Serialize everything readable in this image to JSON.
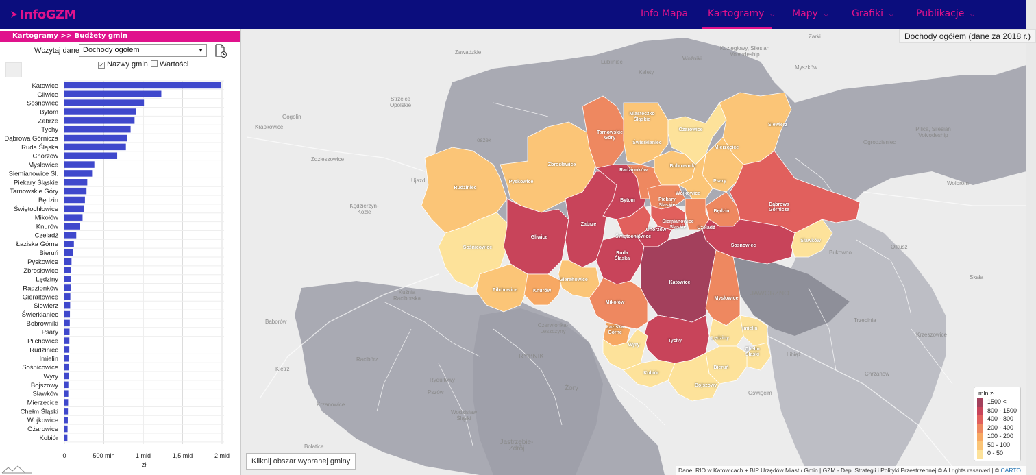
{
  "brand": {
    "name": "InfoGZM",
    "accent": "#e0128c",
    "nav_bg": "#0b0d7d"
  },
  "nav": [
    {
      "label": "Info Mapa",
      "has_dropdown": false,
      "active": false
    },
    {
      "label": "Kartogramy",
      "has_dropdown": true,
      "active": true
    },
    {
      "label": "Mapy",
      "has_dropdown": true,
      "active": false
    },
    {
      "label": "Grafiki",
      "has_dropdown": true,
      "active": false
    },
    {
      "label": "Publikacje",
      "has_dropdown": true,
      "active": false
    }
  ],
  "sidebar": {
    "breadcrumb": "Kartogramy >> Budżety gmin",
    "load_label": "Wczytaj dane",
    "select_value": "Dochody ogółem",
    "chk_names": {
      "label": "Nazwy gmin",
      "checked": true
    },
    "chk_values": {
      "label": "Wartości",
      "checked": false
    },
    "more_button": "..."
  },
  "chart_data": {
    "type": "bar",
    "orientation": "horizontal",
    "bar_color": "#3f48cc",
    "categories": [
      "Katowice",
      "Gliwice",
      "Sosnowiec",
      "Bytom",
      "Zabrze",
      "Tychy",
      "Dąbrowa Górnicza",
      "Ruda Śląska",
      "Chorzów",
      "Mysłowice",
      "Siemianowice Śl.",
      "Piekary Śląskie",
      "Tarnowskie Góry",
      "Będzin",
      "Świętochłowice",
      "Mikołów",
      "Knurów",
      "Czeladź",
      "Łaziska Górne",
      "Bieruń",
      "Pyskowice",
      "Zbrosławice",
      "Lędziny",
      "Radzionków",
      "Gierałtowice",
      "Siewierz",
      "Świerklaniec",
      "Bobrowniki",
      "Psary",
      "Pilchowice",
      "Rudziniec",
      "Imielin",
      "Sośnicowice",
      "Wyry",
      "Bojszowy",
      "Sławków",
      "Mierzęcice",
      "Chełm Śląski",
      "Wojkowice",
      "Ożarowice",
      "Kobiór"
    ],
    "values": [
      1990,
      1230,
      1010,
      910,
      890,
      840,
      800,
      780,
      670,
      380,
      360,
      290,
      280,
      260,
      250,
      230,
      200,
      150,
      120,
      105,
      90,
      85,
      80,
      78,
      75,
      73,
      70,
      68,
      65,
      63,
      62,
      60,
      58,
      55,
      50,
      49,
      47,
      45,
      43,
      40,
      38
    ],
    "xlim": [
      0,
      2000
    ],
    "x_ticks": [
      "0",
      "500 mln",
      "1 mld",
      "1,5 mld",
      "2 mld"
    ],
    "xlabel": "zł"
  },
  "map": {
    "title": "Dochody ogółem (dane za 2018 r.)",
    "hint": "Kliknij obszar wybranej gminy",
    "legend_title": "mln zł",
    "legend": [
      {
        "label": "1500 <",
        "color": "#a3405c"
      },
      {
        "label": "800 - 1500",
        "color": "#c8445a"
      },
      {
        "label": "400 - 800",
        "color": "#e1605d"
      },
      {
        "label": "200 - 400",
        "color": "#ee8860"
      },
      {
        "label": "100 - 200",
        "color": "#f7a863"
      },
      {
        "label": "50 - 100",
        "color": "#fbc577"
      },
      {
        "label": "0 - 50",
        "color": "#fde29a"
      }
    ],
    "attribution": "Dane: RIO w Katowicach + BIP Urzędów Miast / Gmin | GZM - Dep. Strategii i Polityki Przestrzennej © All rights reserved | ©",
    "attribution_link": "CARTO",
    "municipality_labels": [
      {
        "name": "Tarnowskie Góry"
      },
      {
        "name": "Miasteczko Śląskie"
      },
      {
        "name": "Ożarowice"
      },
      {
        "name": "Siewierz"
      },
      {
        "name": "Mierzęcice"
      },
      {
        "name": "Świerklaniec"
      },
      {
        "name": "Zbrosławice"
      },
      {
        "name": "Bobrowniki"
      },
      {
        "name": "Pyskowice"
      },
      {
        "name": "Radzionków"
      },
      {
        "name": "Psary"
      },
      {
        "name": "Rudziniec"
      },
      {
        "name": "Wojkowice"
      },
      {
        "name": "Bytom"
      },
      {
        "name": "Piekary Śląskie"
      },
      {
        "name": "Dąbrowa Górnicza"
      },
      {
        "name": "Będzin"
      },
      {
        "name": "Zabrze"
      },
      {
        "name": "Siemianowice Śląskie"
      },
      {
        "name": "Czeladź"
      },
      {
        "name": "Chorzów"
      },
      {
        "name": "Gliwice"
      },
      {
        "name": "Świętochłowice"
      },
      {
        "name": "Sosnowiec"
      },
      {
        "name": "Sławków"
      },
      {
        "name": "Sośnicowice"
      },
      {
        "name": "Ruda Śląska"
      },
      {
        "name": "Gierałtowice"
      },
      {
        "name": "Katowice"
      },
      {
        "name": "Pilchowice"
      },
      {
        "name": "Knurów"
      },
      {
        "name": "Mysłowice"
      },
      {
        "name": "Mikołów"
      },
      {
        "name": "Łaziska Górne"
      },
      {
        "name": "Imielin"
      },
      {
        "name": "Lędziny"
      },
      {
        "name": "Tychy"
      },
      {
        "name": "Wyry"
      },
      {
        "name": "Chełm Śląski"
      },
      {
        "name": "Bieruń"
      },
      {
        "name": "Kobiór"
      },
      {
        "name": "Bojszowy"
      }
    ],
    "basemap_labels": [
      {
        "name": "Zawadzkie"
      },
      {
        "name": "Żarki"
      },
      {
        "name": "Lubliniec"
      },
      {
        "name": "Koziegłowy, Silesian Voivodeship"
      },
      {
        "name": "Woźniki"
      },
      {
        "name": "Kalety"
      },
      {
        "name": "Myszków"
      },
      {
        "name": "Strzelce Opolskie"
      },
      {
        "name": "Gogolin"
      },
      {
        "name": "Krapkowice"
      },
      {
        "name": "Toszek"
      },
      {
        "name": "Ogrodzieniec"
      },
      {
        "name": "Pilica, Silesian Voivodeship"
      },
      {
        "name": "Zdzieszowice"
      },
      {
        "name": "Ujazd"
      },
      {
        "name": "Wolbrom"
      },
      {
        "name": "Kędzierzyn-Koźle"
      },
      {
        "name": "Bukowno"
      },
      {
        "name": "Olkusz"
      },
      {
        "name": "Skała"
      },
      {
        "name": "Kuźnia Raciborska"
      },
      {
        "name": "JAWORZNO"
      },
      {
        "name": "Trzebinia"
      },
      {
        "name": "Baborów"
      },
      {
        "name": "Czerwionka-Leszczyny"
      },
      {
        "name": "Krzeszowice"
      },
      {
        "name": "Kietrz"
      },
      {
        "name": "RYBNIK"
      },
      {
        "name": "Racibórz"
      },
      {
        "name": "Libiąż"
      },
      {
        "name": "Rydułtowy"
      },
      {
        "name": "Chrzanów"
      },
      {
        "name": "Pszów"
      },
      {
        "name": "Żory"
      },
      {
        "name": "Oświęcim"
      },
      {
        "name": "Krzanowice"
      },
      {
        "name": "Wodzisław Śląski"
      },
      {
        "name": "Bolatice"
      },
      {
        "name": "Jastrzębie-Zdrój"
      }
    ]
  }
}
